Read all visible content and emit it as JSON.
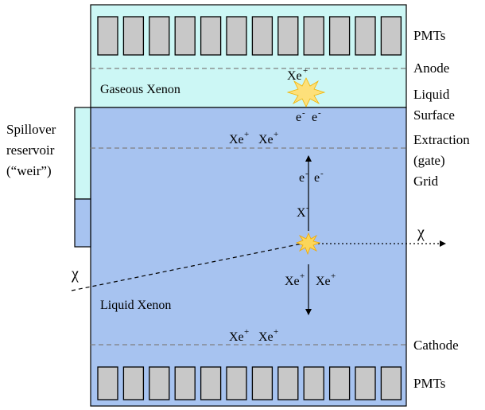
{
  "colors": {
    "gas": "#ccf7f5",
    "liquid": "#a7c3f0",
    "pmt": "#c8c8c8",
    "line": "#000000",
    "grid": "#7f7f7f",
    "flash": "#fbd65a"
  },
  "labels": {
    "pmts_top": "PMTs",
    "anode": "Anode",
    "liquid_surface_1": "Liquid",
    "liquid_surface_2": "Surface",
    "extraction_1": "Extraction",
    "extraction_2": "(gate)",
    "extraction_3": "Grid",
    "cathode": "Cathode",
    "pmts_bottom": "PMTs",
    "spillover_1": "Spillover",
    "spillover_2": "reservoir",
    "spillover_3": "(“weir”)",
    "gaseous_xenon": "Gaseous Xenon",
    "liquid_xenon": "Liquid Xenon",
    "chi_in": "χ",
    "chi_out": "χ"
  },
  "particles": {
    "xe_top": {
      "base": "Xe",
      "sup": "+"
    },
    "e_surface_1": {
      "base": "e",
      "sup": "-"
    },
    "e_surface_2": {
      "base": "e",
      "sup": "-"
    },
    "xe_gate_1": {
      "base": "Xe",
      "sup": "+"
    },
    "xe_gate_2": {
      "base": "Xe",
      "sup": "+"
    },
    "e_drift_1": {
      "base": "e",
      "sup": "-"
    },
    "e_drift_2": {
      "base": "e",
      "sup": "-"
    },
    "x_minus": {
      "base": "X",
      "sup": "-"
    },
    "xe_drift_1": {
      "base": "Xe",
      "sup": "+"
    },
    "xe_drift_2": {
      "base": "Xe",
      "sup": "+"
    },
    "xe_cathode_1": {
      "base": "Xe",
      "sup": "+"
    },
    "xe_cathode_2": {
      "base": "Xe",
      "sup": "+"
    }
  },
  "pmt_count_top": 12,
  "pmt_count_bottom": 12
}
